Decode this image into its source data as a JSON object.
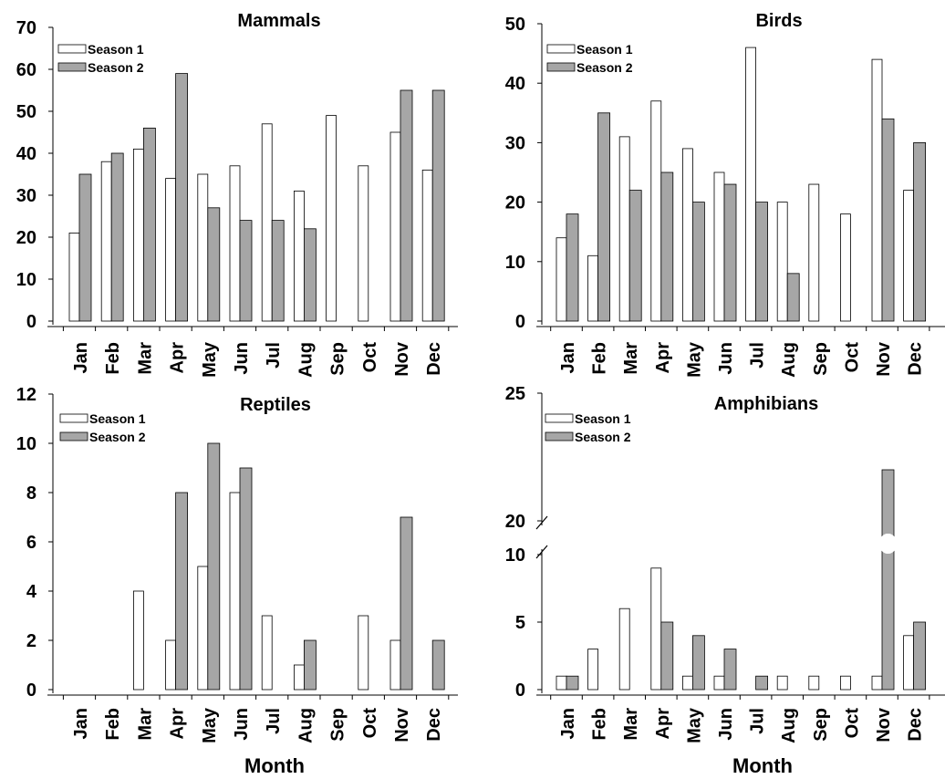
{
  "colors": {
    "season1_fill": "#ffffff",
    "season2_fill": "#a6a6a6",
    "outline": "#000000"
  },
  "chart_data": [
    {
      "type": "bar",
      "title": "Mammals",
      "xlabel": "",
      "ylabel": "",
      "categories": [
        "Jan",
        "Feb",
        "Mar",
        "Apr",
        "May",
        "Jun",
        "Jul",
        "Aug",
        "Sep",
        "Oct",
        "Nov",
        "Dec"
      ],
      "series": [
        {
          "name": "Season 1",
          "values": [
            21,
            38,
            41,
            34,
            35,
            37,
            47,
            31,
            49,
            37,
            45,
            36
          ]
        },
        {
          "name": "Season 2",
          "values": [
            35,
            40,
            46,
            59,
            27,
            24,
            24,
            22,
            null,
            null,
            55,
            55
          ]
        }
      ],
      "ylim": [
        0,
        70
      ],
      "yticks": [
        0,
        10,
        20,
        30,
        40,
        50,
        60,
        70
      ],
      "legend": "top-left",
      "grid": false
    },
    {
      "type": "bar",
      "title": "Birds",
      "xlabel": "",
      "ylabel": "",
      "categories": [
        "Jan",
        "Feb",
        "Mar",
        "Apr",
        "May",
        "Jun",
        "Jul",
        "Aug",
        "Sep",
        "Oct",
        "Nov",
        "Dec"
      ],
      "series": [
        {
          "name": "Season 1",
          "values": [
            14,
            11,
            31,
            37,
            29,
            25,
            46,
            20,
            23,
            18,
            44,
            22
          ]
        },
        {
          "name": "Season 2",
          "values": [
            18,
            35,
            22,
            25,
            20,
            23,
            20,
            8,
            null,
            null,
            34,
            30
          ]
        }
      ],
      "ylim": [
        0,
        50
      ],
      "yticks": [
        0,
        10,
        20,
        30,
        40,
        50
      ],
      "legend": "top-left",
      "grid": false
    },
    {
      "type": "bar",
      "title": "Reptiles",
      "xlabel": "Month",
      "ylabel": "",
      "categories": [
        "Jan",
        "Feb",
        "Mar",
        "Apr",
        "May",
        "Jun",
        "Jul",
        "Aug",
        "Sep",
        "Oct",
        "Nov",
        "Dec"
      ],
      "series": [
        {
          "name": "Season 1",
          "values": [
            0,
            0,
            4,
            2,
            5,
            8,
            3,
            1,
            0,
            3,
            2,
            0
          ]
        },
        {
          "name": "Season 2",
          "values": [
            0,
            0,
            0,
            8,
            10,
            9,
            0,
            2,
            0,
            0,
            7,
            2
          ]
        }
      ],
      "ylim": [
        0,
        12
      ],
      "yticks": [
        0,
        2,
        4,
        6,
        8,
        10,
        12
      ],
      "legend": "top-left",
      "grid": false
    },
    {
      "type": "bar",
      "title": "Amphibians",
      "xlabel": "Month",
      "ylabel": "",
      "categories": [
        "Jan",
        "Feb",
        "Mar",
        "Apr",
        "May",
        "Jun",
        "Jul",
        "Aug",
        "Sep",
        "Oct",
        "Nov",
        "Dec"
      ],
      "series": [
        {
          "name": "Season 1",
          "values": [
            1,
            3,
            6,
            9,
            1,
            1,
            0,
            1,
            1,
            1,
            1,
            4
          ]
        },
        {
          "name": "Season 2",
          "values": [
            1,
            0,
            0,
            5,
            4,
            3,
            1,
            0,
            0,
            0,
            22,
            5
          ]
        }
      ],
      "ylim": [
        0,
        25
      ],
      "axis_break": [
        10,
        20
      ],
      "yticks": [
        0,
        5,
        10,
        20,
        25
      ],
      "legend": "top-left",
      "grid": false
    }
  ]
}
